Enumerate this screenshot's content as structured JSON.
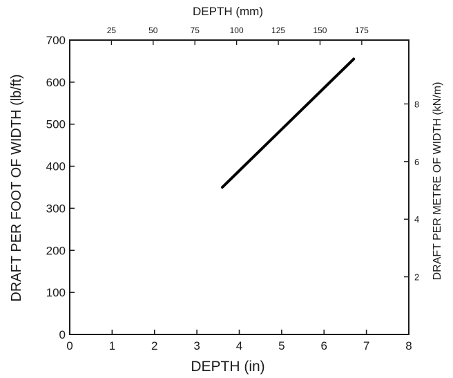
{
  "chart_data": {
    "type": "line",
    "title": "",
    "xlabel_bottom": "DEPTH (in)",
    "xlabel_top": "DEPTH (mm)",
    "ylabel_left": "DRAFT PER FOOT OF WIDTH (lb/ft)",
    "ylabel_right": "DRAFT PER METRE OF WIDTH (kN/m)",
    "xlim": [
      0,
      8
    ],
    "ylim": [
      0,
      700
    ],
    "x_ticks": [
      "0",
      "1",
      "2",
      "3",
      "4",
      "5",
      "6",
      "7",
      "8"
    ],
    "y_ticks": [
      "0",
      "100",
      "200",
      "300",
      "400",
      "500",
      "600",
      "700"
    ],
    "top_ticks": [
      {
        "value": 25,
        "label": "25"
      },
      {
        "value": 50,
        "label": "50"
      },
      {
        "value": 75,
        "label": "75"
      },
      {
        "value": 100,
        "label": "100"
      },
      {
        "value": 125,
        "label": "125"
      },
      {
        "value": 150,
        "label": "150"
      },
      {
        "value": 175,
        "label": "175"
      }
    ],
    "right_ticks": [
      {
        "value": 2,
        "label": "2"
      },
      {
        "value": 4,
        "label": "4"
      },
      {
        "value": 6,
        "label": "6"
      },
      {
        "value": 8,
        "label": "8"
      }
    ],
    "series": [
      {
        "x": [
          3.6,
          6.7
        ],
        "y": [
          350,
          655
        ]
      }
    ],
    "grid": false,
    "colors": {
      "line": "#000000",
      "axis": "#1a1a1a",
      "text": "#1a1a1a"
    }
  }
}
